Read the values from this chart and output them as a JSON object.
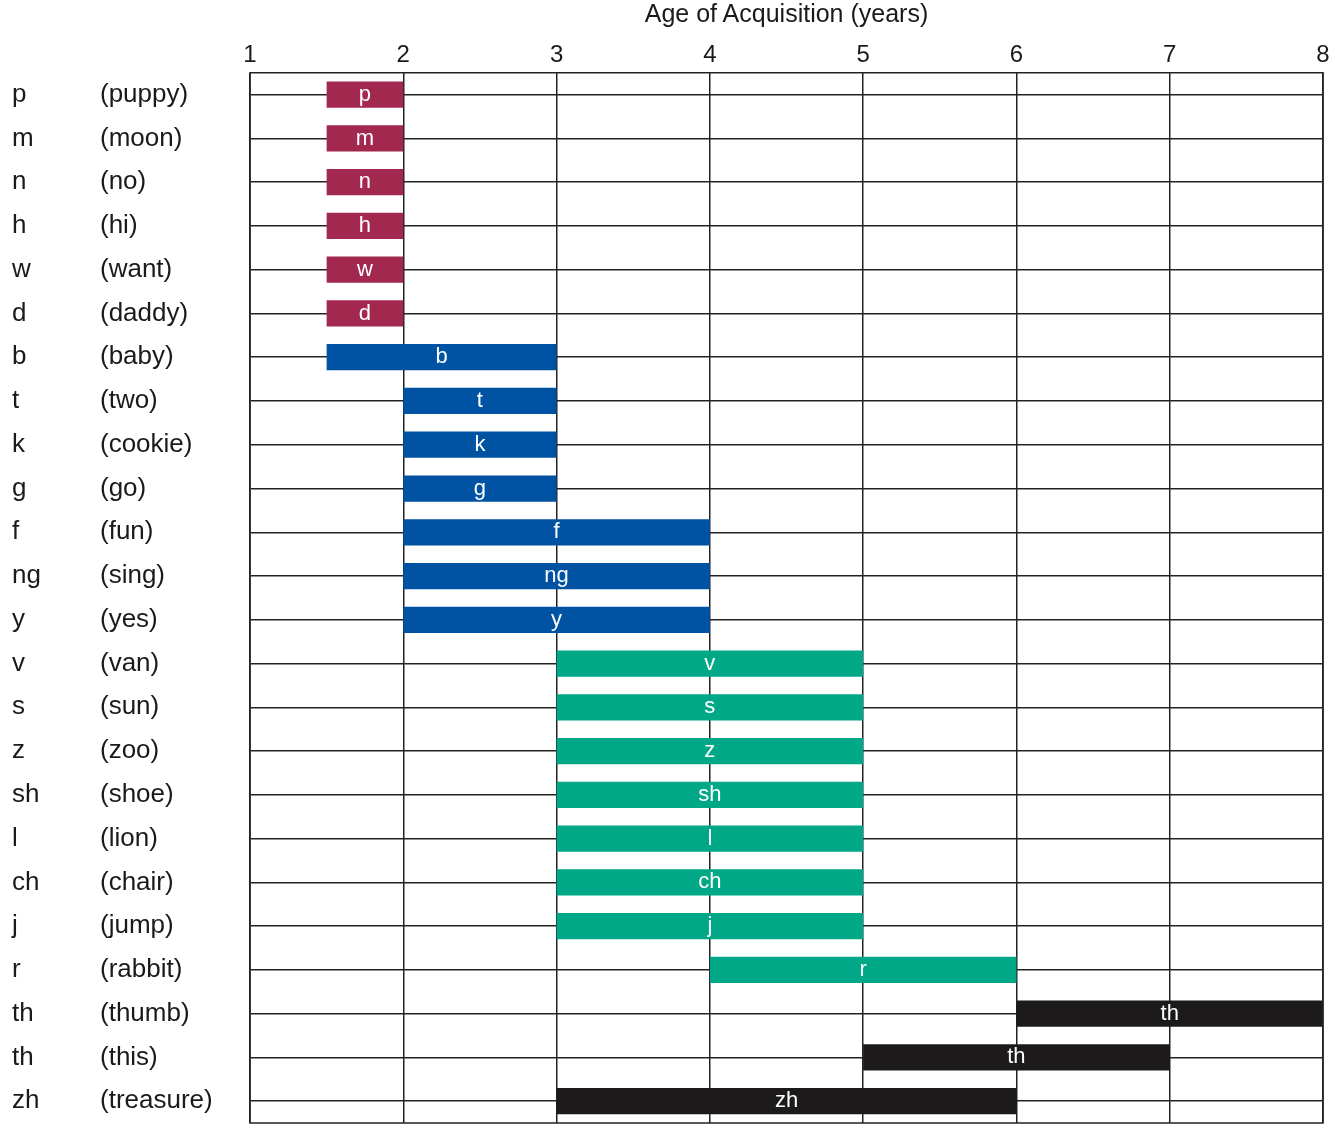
{
  "chart_data": {
    "type": "bar",
    "orientation": "horizontal",
    "xlabel": "Age of Acquisition (years)",
    "categories": [
      "p (puppy)",
      "m (moon)",
      "n (no)",
      "h (hi)",
      "w (want)",
      "d (daddy)",
      "b (baby)",
      "t (two)",
      "k (cookie)",
      "g (go)",
      "f (fun)",
      "ng (sing)",
      "y (yes)",
      "v (van)",
      "s (sun)",
      "z (zoo)",
      "sh (shoe)",
      "l (lion)",
      "ch (chair)",
      "j (jump)",
      "r (rabbit)",
      "th (thumb)",
      "th (this)",
      "zh (treasure)"
    ],
    "base": [
      1.5,
      1.5,
      1.5,
      1.5,
      1.5,
      1.5,
      1.5,
      2,
      2,
      2,
      2,
      2,
      2,
      3,
      3,
      3,
      3,
      3,
      3,
      3,
      4,
      6,
      5,
      3
    ],
    "values": [
      0.5,
      0.5,
      0.5,
      0.5,
      0.5,
      0.5,
      1.5,
      1,
      1,
      1,
      2,
      2,
      2,
      2,
      2,
      2,
      2,
      2,
      2,
      2,
      2,
      2,
      2,
      3
    ],
    "value_labels": [
      "p",
      "m",
      "n",
      "h",
      "w",
      "d",
      "b",
      "t",
      "k",
      "g",
      "f",
      "ng",
      "y",
      "v",
      "s",
      "z",
      "sh",
      "l",
      "ch",
      "j",
      "r",
      "th",
      "th",
      "zh"
    ],
    "colors": [
      "#a3284f",
      "#a3284f",
      "#a3284f",
      "#a3284f",
      "#a3284f",
      "#a3284f",
      "#0052a3",
      "#0052a3",
      "#0052a3",
      "#0052a3",
      "#0052a3",
      "#0052a3",
      "#0052a3",
      "#00a887",
      "#00a887",
      "#00a887",
      "#00a887",
      "#00a887",
      "#00a887",
      "#00a887",
      "#00a887",
      "#1c1a1b",
      "#1c1a1b",
      "#1c1a1b"
    ],
    "xlim": [
      1,
      8
    ],
    "xticks": [
      1,
      2,
      3,
      4,
      5,
      6,
      7,
      8
    ],
    "grid": true,
    "legend": false
  }
}
